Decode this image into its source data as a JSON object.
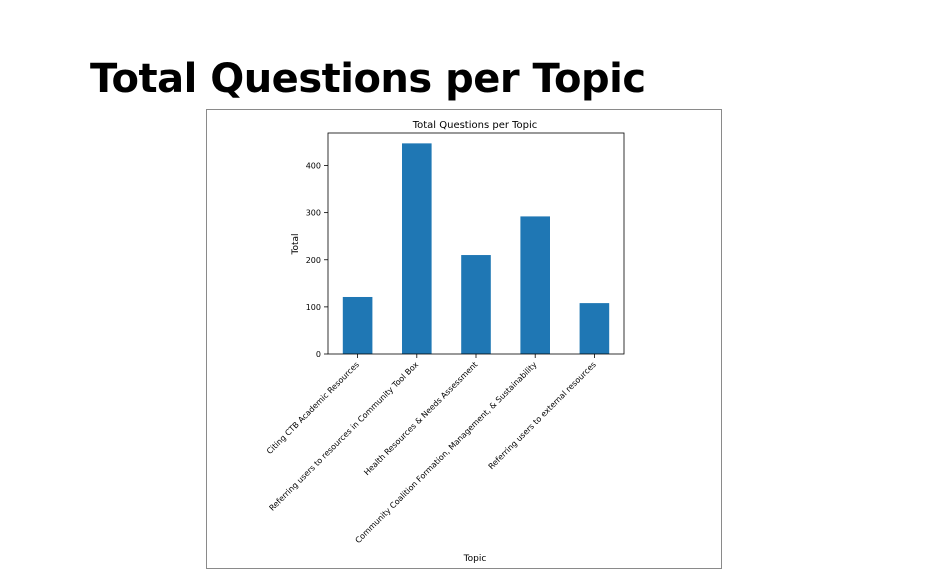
{
  "slide": {
    "title": "Total Questions per Topic"
  },
  "chart_data": {
    "type": "bar",
    "title": "Total Questions per Topic",
    "xlabel": "Topic",
    "ylabel": "Total",
    "categories": [
      "Citing CTB Academic Resources",
      "Referring users to resources in Community Tool Box",
      "Health Resources & Needs Assessment",
      "Community Coalition Formation, Management, & Sustainability",
      "Referring users to external resources"
    ],
    "values": [
      121,
      447,
      210,
      292,
      108
    ],
    "ylim": [
      0,
      469
    ],
    "yticks": [
      0,
      100,
      200,
      300,
      400
    ],
    "bar_color": "#1f77b4",
    "grid": false,
    "legend": "none"
  }
}
